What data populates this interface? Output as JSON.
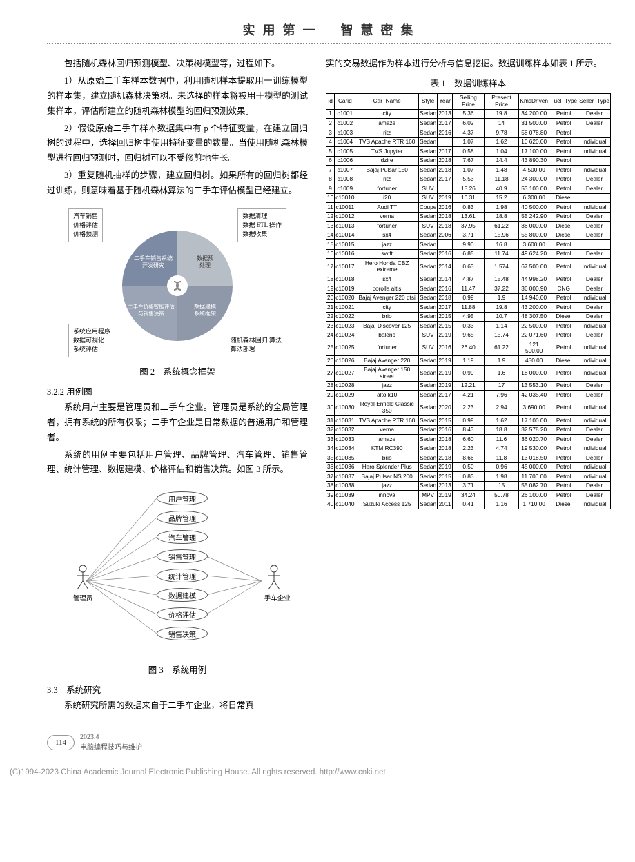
{
  "header": {
    "left": "实 用 第 一",
    "right": "智 慧 密 集"
  },
  "left_col": {
    "p1": "包括随机森林回归预测模型、决策树模型等，过程如下。",
    "p2": "1）从原始二手车样本数据中，利用随机样本提取用于训练模型的样本集，建立随机森林决策树。未选择的样本将被用于模型的测试集样本，评估所建立的随机森林模型的回归预测效果。",
    "p3": "2）假设原始二手车样本数据集中有 p 个特征变量，在建立回归树的过程中，选择回归树中使用特征变量的数量。当使用随机森林模型进行回归预测时，回归树可以不受修剪地生长。",
    "p4": "3）重复随机抽样的步骤，建立回归树。如果所有的回归树都经过训练，则意味着基于随机森林算法的二手车评估模型已经建立。",
    "fig2_caption": "图 2　系统概念框架",
    "sec_322": "3.2.2 用例图",
    "p5": "系统用户主要是管理员和二手车企业。管理员是系统的全局管理者，拥有系统的所有权限；二手车企业是日常数据的普通用户和管理者。",
    "p6": "系统的用例主要包括用户管理、品牌管理、汽车管理、销售管理、统计管理、数据建模、价格评估和销售决策。如图 3 所示。",
    "fig3_caption": "图 3　系统用例",
    "sec_33": "3.3　系统研究",
    "p7": "系统研究所需的数据来自于二手车企业，将日常真"
  },
  "right_col": {
    "p1": "实的交易数据作为样本进行分析与信息挖掘。数据训练样本如表 1 所示。",
    "table_caption": "表 1　数据训练样本"
  },
  "pie": {
    "top_left_labels": [
      "汽车销售",
      "价格评估",
      "价格预测"
    ],
    "top_right_labels": [
      "数据清理",
      "数据 ETL 操作",
      "数据收集"
    ],
    "quad_tl": "二手车销售系统\n开发研究",
    "quad_tr": "数据预\n处理",
    "quad_bl": "二手车价格智能评估\n与销售决策",
    "quad_br": "数据建模\n系统框架",
    "bot_left_labels": [
      "系统应用程序",
      "数据可视化",
      "系统评估"
    ],
    "bot_right_labels": [
      "随机森林回归\n算法",
      "算法部署"
    ],
    "colors": {
      "tl": "#7c8aa4",
      "tr": "#b8bec6",
      "bl": "#9aa4b4",
      "br": "#8e98a8",
      "center": "#fff"
    }
  },
  "usecase": {
    "actor_left": "管理员",
    "actor_right": "二手车企业",
    "cases": [
      "用户管理",
      "品牌管理",
      "汽车管理",
      "销售管理",
      "统计管理",
      "数据建模",
      "价格评估",
      "销售决策"
    ]
  },
  "table": {
    "columns": [
      "id",
      "Carid",
      "Car_Name",
      "Style",
      "Year",
      "Selling Price",
      "Present Price",
      "KmsDriven",
      "Fuel_Type",
      "Seller_Type"
    ],
    "rows": [
      [
        "1",
        "c1001",
        "city",
        "Sedan",
        "2013",
        "5.36",
        "19.8",
        "34 200.00",
        "Petrol",
        "Dealer"
      ],
      [
        "2",
        "c1002",
        "amaze",
        "Sedan",
        "2017",
        "6.02",
        "14",
        "31 500.00",
        "Petrol",
        "Dealer"
      ],
      [
        "3",
        "c1003",
        "ritz",
        "Sedan",
        "2016",
        "4.37",
        "9.78",
        "58 078.80",
        "Petrol",
        ""
      ],
      [
        "4",
        "c1004",
        "TVS Apache RTR 160",
        "Sedan",
        "",
        "1.07",
        "1.62",
        "10 620.00",
        "Petrol",
        "Individual"
      ],
      [
        "5",
        "c1005",
        "TVS Jupyter",
        "Sedan",
        "2017",
        "0.58",
        "1.04",
        "17 100.00",
        "Petrol",
        "Individual"
      ],
      [
        "6",
        "c1006",
        "dzire",
        "Sedan",
        "2018",
        "7.67",
        "14.4",
        "43 890.30",
        "Petrol",
        ""
      ],
      [
        "7",
        "c1007",
        "Bajaj Pulsar 150",
        "Sedan",
        "2018",
        "1.07",
        "1.48",
        "4 500.00",
        "Petrol",
        "Individual"
      ],
      [
        "8",
        "c1008",
        "ritz",
        "Sedan",
        "2017",
        "5.53",
        "11.18",
        "24 300.00",
        "Petrol",
        "Dealer"
      ],
      [
        "9",
        "c1009",
        "fortuner",
        "SUV",
        "",
        "15.26",
        "40.9",
        "53 100.00",
        "Petrol",
        "Dealer"
      ],
      [
        "10",
        "c10010",
        "i20",
        "SUV",
        "2019",
        "10.31",
        "15.2",
        "6 300.00",
        "Diesel",
        ""
      ],
      [
        "11",
        "c10011",
        "Audi TT",
        "Coupe",
        "2016",
        "0.83",
        "1.98",
        "40 500.00",
        "Petrol",
        "Individual"
      ],
      [
        "12",
        "c10012",
        "verna",
        "Sedan",
        "2018",
        "13.61",
        "18.8",
        "55 242.90",
        "Petrol",
        "Dealer"
      ],
      [
        "13",
        "c10013",
        "fortuner",
        "SUV",
        "2018",
        "37.95",
        "61.22",
        "36 000.00",
        "Diesel",
        "Dealer"
      ],
      [
        "14",
        "c10014",
        "sx4",
        "Sedan",
        "2006",
        "3.71",
        "15.96",
        "55 800.00",
        "Diesel",
        "Dealer"
      ],
      [
        "15",
        "c10015",
        "jazz",
        "Sedan",
        "",
        "9.90",
        "16.8",
        "3 600.00",
        "Petrol",
        ""
      ],
      [
        "16",
        "c10016",
        "swift",
        "Sedan",
        "2016",
        "6.85",
        "11.74",
        "49 624.20",
        "Petrol",
        "Dealer"
      ],
      [
        "17",
        "c10017",
        "Hero Honda CBZ extreme",
        "Sedan",
        "2014",
        "0.63",
        "1.574",
        "67 500.00",
        "Petrol",
        "Individual"
      ],
      [
        "18",
        "c10018",
        "sx4",
        "Sedan",
        "2014",
        "4.87",
        "15.48",
        "44 998.20",
        "Petrol",
        "Dealer"
      ],
      [
        "19",
        "c10019",
        "corolla altis",
        "Sedan",
        "2016",
        "11.47",
        "37.22",
        "36 000.90",
        "CNG",
        "Dealer"
      ],
      [
        "20",
        "c10020",
        "Bajaj Avenger 220 dtsi",
        "Sedan",
        "2018",
        "0.99",
        "1.9",
        "14 940.00",
        "Petrol",
        "Individual"
      ],
      [
        "21",
        "c10021",
        "city",
        "Sedan",
        "2017",
        "11.88",
        "19.8",
        "43 200.00",
        "Petrol",
        "Dealer"
      ],
      [
        "22",
        "c10022",
        "brio",
        "Sedan",
        "2015",
        "4.95",
        "10.7",
        "48 307.50",
        "Diesel",
        "Dealer"
      ],
      [
        "23",
        "c10023",
        "Bajaj Discover 125",
        "Sedan",
        "2015",
        "0.33",
        "1.14",
        "22 500.00",
        "Petrol",
        "Individual"
      ],
      [
        "24",
        "c10024",
        "baleno",
        "SUV",
        "2019",
        "9.65",
        "15.74",
        "22 071.60",
        "Petrol",
        "Dealer"
      ],
      [
        "25",
        "c10025",
        "fortuner",
        "SUV",
        "2016",
        "26.40",
        "61.22",
        "121 500.00",
        "Petrol",
        "Individual"
      ],
      [
        "26",
        "c10026",
        "Bajaj Avenger 220",
        "Sedan",
        "2019",
        "1.19",
        "1.9",
        "450.00",
        "Diesel",
        "Individual"
      ],
      [
        "27",
        "c10027",
        "Bajaj Avenger 150 street",
        "Sedan",
        "2019",
        "0.99",
        "1.6",
        "18 000.00",
        "Petrol",
        "Individual"
      ],
      [
        "28",
        "c10028",
        "jazz",
        "Sedan",
        "2019",
        "12.21",
        "17",
        "13 553.10",
        "Petrol",
        "Dealer"
      ],
      [
        "29",
        "c10029",
        "alto k10",
        "Sedan",
        "2017",
        "4.21",
        "7.96",
        "42 035.40",
        "Petrol",
        "Dealer"
      ],
      [
        "30",
        "c10030",
        "Royal Enfield Classic 350",
        "Sedan",
        "2020",
        "2.23",
        "2.94",
        "3 690.00",
        "Petrol",
        "Individual"
      ],
      [
        "31",
        "c10031",
        "TVS Apache RTR 160",
        "Sedan",
        "2015",
        "0.99",
        "1.62",
        "17 100.00",
        "Petrol",
        "Individual"
      ],
      [
        "32",
        "c10032",
        "verna",
        "Sedan",
        "2016",
        "8.43",
        "18.8",
        "32 578.20",
        "Petrol",
        "Dealer"
      ],
      [
        "33",
        "c10033",
        "amaze",
        "Sedan",
        "2018",
        "6.60",
        "11.6",
        "36 020.70",
        "Petrol",
        "Dealer"
      ],
      [
        "34",
        "c10034",
        "KTM RC390",
        "Sedan",
        "2018",
        "2.23",
        "4.74",
        "19 530.00",
        "Petrol",
        "Individual"
      ],
      [
        "35",
        "c10035",
        "brio",
        "Sedan",
        "2018",
        "8.66",
        "11.8",
        "13 018.50",
        "Petrol",
        "Dealer"
      ],
      [
        "36",
        "c10036",
        "Hero Splender Plus",
        "Sedan",
        "2019",
        "0.50",
        "0.96",
        "45 000.00",
        "Petrol",
        "Individual"
      ],
      [
        "37",
        "c10037",
        "Bajaj Pulsar NS 200",
        "Sedan",
        "2015",
        "0.83",
        "1.98",
        "11 700.00",
        "Petrol",
        "Individual"
      ],
      [
        "38",
        "c10038",
        "jazz",
        "Sedan",
        "2013",
        "3.71",
        "15",
        "55 082.70",
        "Petrol",
        "Dealer"
      ],
      [
        "39",
        "c10039",
        "innova",
        "MPV",
        "2019",
        "34.24",
        "50.78",
        "26 100.00",
        "Petrol",
        "Dealer"
      ],
      [
        "40",
        "c10040",
        "Suzuki Access 125",
        "Sedan",
        "2011",
        "0.41",
        "1.16",
        "1 710.00",
        "Diesel",
        "Individual"
      ]
    ]
  },
  "footer": {
    "page_num": "114",
    "date": "2023.4",
    "journal": "电脑编程技巧与维护",
    "copyright": "(C)1994-2023 China Academic Journal Electronic Publishing House. All rights reserved.    http://www.cnki.net"
  }
}
